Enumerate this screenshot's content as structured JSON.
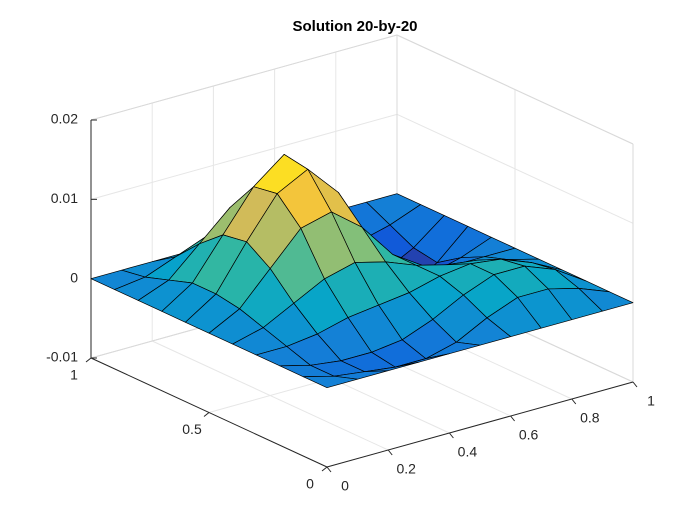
{
  "chart_data": {
    "type": "surface",
    "title": "Solution 20-by-20",
    "x": [
      0,
      0.1,
      0.2,
      0.3,
      0.4,
      0.5,
      0.6,
      0.7,
      0.8,
      0.9,
      1
    ],
    "y": [
      0,
      0.1,
      0.2,
      0.3,
      0.4,
      0.5,
      0.6,
      0.7,
      0.8,
      0.9,
      1
    ],
    "z": [
      [
        0,
        0,
        0,
        0,
        0,
        0,
        0,
        0,
        0,
        0,
        0
      ],
      [
        0,
        -0.001,
        -0.0015,
        -0.002,
        -0.002,
        -0.001,
        0.001,
        0.0025,
        0.0025,
        0.0015,
        0
      ],
      [
        0,
        -0.001,
        -0.0015,
        -0.0015,
        -0.001,
        0.0005,
        0.0025,
        0.004,
        0.004,
        0.0025,
        0
      ],
      [
        0,
        0,
        0.0005,
        0.0015,
        0.002,
        0.0025,
        0.0035,
        0.004,
        0.0035,
        0.002,
        0
      ],
      [
        0,
        0.001,
        0.003,
        0.005,
        0.006,
        0.005,
        0.0035,
        0.0025,
        0.002,
        0.001,
        0
      ],
      [
        0,
        0.002,
        0.006,
        0.01,
        0.011,
        0.008,
        0.0035,
        0.001,
        0,
        0,
        0
      ],
      [
        0,
        0.0025,
        0.008,
        0.013,
        0.015,
        0.011,
        0.004,
        -0.001,
        -0.0025,
        -0.0015,
        0
      ],
      [
        0,
        0.0025,
        0.0075,
        0.0125,
        0.0155,
        0.011,
        0.0025,
        -0.003,
        -0.0055,
        -0.0035,
        0
      ],
      [
        0,
        0.0015,
        0.005,
        0.0085,
        0.01,
        0.0065,
        0.0005,
        -0.0035,
        -0.005,
        -0.003,
        0
      ],
      [
        0,
        0.0005,
        0.002,
        0.0035,
        0.004,
        0.0025,
        0,
        -0.002,
        -0.0025,
        -0.0015,
        0
      ],
      [
        0,
        0,
        0,
        0,
        0,
        0,
        0,
        0,
        0,
        0,
        0
      ]
    ],
    "xlim": [
      0,
      1
    ],
    "ylim": [
      0,
      1
    ],
    "zlim": [
      -0.01,
      0.02
    ],
    "xticks": [
      0,
      0.2,
      0.4,
      0.6,
      0.8,
      1
    ],
    "yticks": [
      0,
      0.5,
      1
    ],
    "zticks": [
      -0.01,
      0,
      0.01,
      0.02
    ],
    "grid": true,
    "edge_color": "#000000",
    "colormap": [
      "#352a87",
      "#0f5cdd",
      "#1481d6",
      "#06a4ca",
      "#2eb7a4",
      "#87bf77",
      "#d1bb59",
      "#fec832",
      "#f9fb0e"
    ]
  }
}
